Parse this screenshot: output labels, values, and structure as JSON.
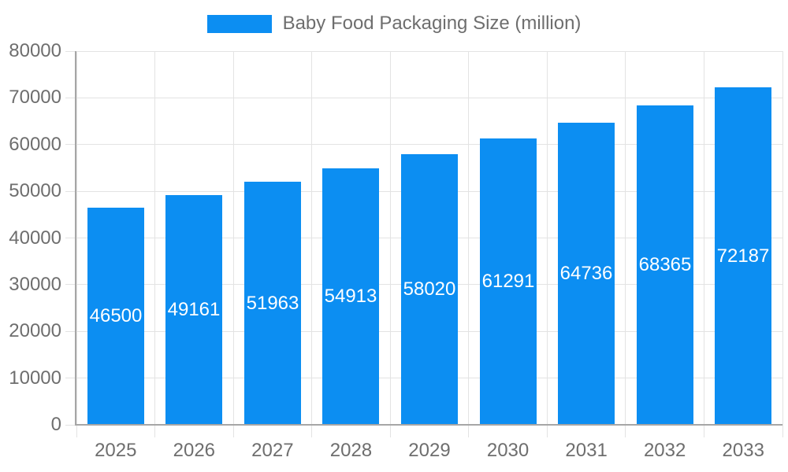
{
  "legend": {
    "label": "Baby Food Packaging Size (million)"
  },
  "colors": {
    "bar": "#0c8ef2",
    "grid": "#e3e3e3",
    "axis_border": "#a6a6a6",
    "tick_label": "#6e6e6e",
    "bar_label": "#ffffff",
    "background": "#ffffff"
  },
  "chart_data": {
    "type": "bar",
    "title": "Baby Food Packaging Size (million)",
    "categories": [
      "2025",
      "2026",
      "2027",
      "2028",
      "2029",
      "2030",
      "2031",
      "2032",
      "2033"
    ],
    "values": [
      46500,
      49161,
      51963,
      54913,
      58020,
      61291,
      64736,
      68365,
      72187
    ],
    "xlabel": "",
    "ylabel": "",
    "ylim": [
      0,
      80000
    ],
    "yticks": [
      0,
      10000,
      20000,
      30000,
      40000,
      50000,
      60000,
      70000,
      80000
    ],
    "grid": true,
    "legend_position": "top",
    "bar_label_position": "inside-center"
  }
}
